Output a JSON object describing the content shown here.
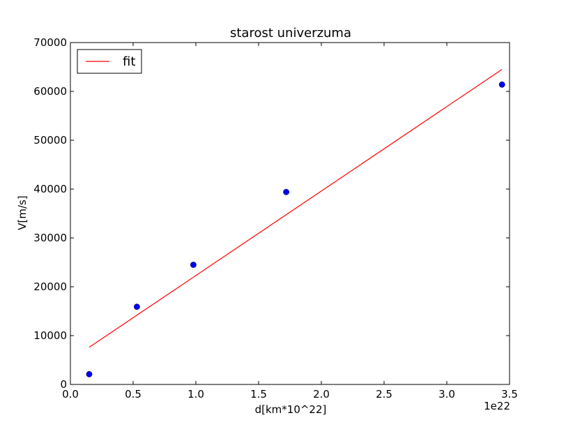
{
  "chart_data": {
    "type": "scatter",
    "title": "starost univerzuma",
    "xlabel": "d[km*10^22]",
    "ylabel": "V[m/s]",
    "x_offset_label": "1e22",
    "xlim": [
      0.0,
      3.5
    ],
    "ylim": [
      0,
      70000
    ],
    "xticks": [
      0.0,
      0.5,
      1.0,
      1.5,
      2.0,
      2.5,
      3.0,
      3.5
    ],
    "xtick_labels": [
      "0.0",
      "0.5",
      "1.0",
      "1.5",
      "2.0",
      "2.5",
      "3.0",
      "3.5"
    ],
    "yticks": [
      0,
      10000,
      20000,
      30000,
      40000,
      50000,
      60000,
      70000
    ],
    "ytick_labels": [
      "0",
      "10000",
      "20000",
      "30000",
      "40000",
      "50000",
      "60000",
      "70000"
    ],
    "grid": false,
    "legend_position": "top-left",
    "series": [
      {
        "kind": "points",
        "color": "#0000ff",
        "x": [
          0.15,
          0.53,
          0.98,
          1.72,
          3.44
        ],
        "y": [
          2100,
          15900,
          24500,
          39400,
          61400
        ]
      },
      {
        "kind": "line",
        "name": "fit",
        "color": "#ff0000",
        "x": [
          0.15,
          3.44
        ],
        "y": [
          7600,
          64500
        ]
      }
    ]
  }
}
